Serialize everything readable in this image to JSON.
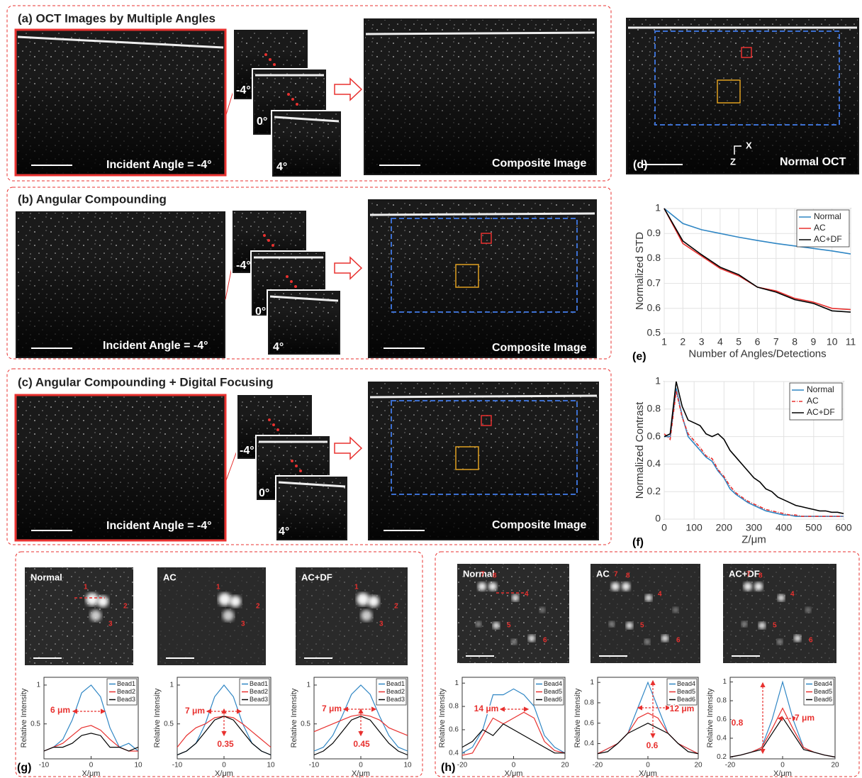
{
  "panels": {
    "a": {
      "title": "(a) OCT Images by Multiple Angles",
      "angle_label": "Incident Angle = -4°",
      "stack_labels": [
        "-4°",
        "0°",
        "4°"
      ],
      "composite_label": "Composite Image"
    },
    "b": {
      "title": "(b) Angular Compounding",
      "angle_label": "Incident Angle = -4°",
      "stack_labels": [
        "-4°",
        "0°",
        "4°"
      ],
      "composite_label": "Composite Image"
    },
    "c": {
      "title": "(c) Angular Compounding + Digital Focusing",
      "angle_label": "Incident Angle = -4°",
      "stack_labels": [
        "-4°",
        "0°",
        "4°"
      ],
      "composite_label": "Composite Image"
    },
    "d": {
      "label": "(d)",
      "axis_x": "X",
      "axis_z": "Z",
      "caption": "Normal OCT"
    },
    "g": {
      "label": "(g)",
      "images": [
        {
          "caption": "Normal",
          "beads": [
            "1",
            "2",
            "3"
          ]
        },
        {
          "caption": "AC",
          "beads": [
            "1",
            "2",
            "3"
          ]
        },
        {
          "caption": "AC+DF",
          "beads": [
            "1",
            "2",
            "3"
          ]
        }
      ]
    },
    "h": {
      "label": "(h)",
      "images": [
        {
          "caption": "Normal",
          "beads": [
            "7",
            "8",
            "4",
            "5",
            "6"
          ]
        },
        {
          "caption": "AC",
          "beads": [
            "7",
            "8",
            "4",
            "5",
            "6"
          ]
        },
        {
          "caption": "AC+DF",
          "beads": [
            "7",
            "8",
            "4",
            "5",
            "6"
          ]
        }
      ]
    }
  },
  "chart_data": [
    {
      "type": "line",
      "panel_label": "(e)",
      "xlabel": "Number of Angles/Detections",
      "ylabel": "Normalized STD",
      "x": [
        1,
        2,
        3,
        4,
        5,
        6,
        7,
        8,
        9,
        10,
        11
      ],
      "xlim": [
        1,
        11
      ],
      "xticks": [
        1,
        2,
        3,
        4,
        5,
        6,
        7,
        8,
        9,
        10,
        11
      ],
      "ylim": [
        0.5,
        1
      ],
      "yticks": [
        0.5,
        0.6,
        0.7,
        0.8,
        0.9,
        1
      ],
      "grid": true,
      "legend": "upper right",
      "series": [
        {
          "name": "Normal",
          "color": "#2f86c4",
          "values": [
            1,
            0.94,
            0.915,
            0.9,
            0.885,
            0.872,
            0.86,
            0.85,
            0.84,
            0.83,
            0.818
          ]
        },
        {
          "name": "AC",
          "color": "#e8312f",
          "values": [
            1,
            0.86,
            0.81,
            0.76,
            0.73,
            0.685,
            0.67,
            0.64,
            0.625,
            0.6,
            0.595
          ]
        },
        {
          "name": "AC+DF",
          "color": "#000000",
          "values": [
            1,
            0.87,
            0.815,
            0.765,
            0.735,
            0.685,
            0.665,
            0.635,
            0.62,
            0.59,
            0.585
          ]
        }
      ]
    },
    {
      "type": "line",
      "panel_label": "(f)",
      "xlabel": "Z/μm",
      "ylabel": "Normalized Contrast",
      "x": [
        0,
        20,
        40,
        60,
        80,
        100,
        120,
        140,
        160,
        180,
        200,
        220,
        240,
        260,
        280,
        300,
        320,
        340,
        360,
        380,
        400,
        420,
        440,
        460,
        480,
        500,
        520,
        540,
        560,
        580,
        600
      ],
      "xlim": [
        0,
        600
      ],
      "xticks": [
        0,
        100,
        200,
        300,
        400,
        500,
        600
      ],
      "ylim": [
        0,
        1
      ],
      "yticks": [
        0,
        0.2,
        0.4,
        0.6,
        0.8,
        1
      ],
      "grid": true,
      "legend": "upper right",
      "series": [
        {
          "name": "Normal",
          "color": "#2f86c4",
          "dash": false,
          "values": [
            0.6,
            0.6,
            0.95,
            0.75,
            0.6,
            0.55,
            0.5,
            0.45,
            0.42,
            0.35,
            0.3,
            0.22,
            0.18,
            0.15,
            0.12,
            0.1,
            0.08,
            0.06,
            0.05,
            0.04,
            0.03,
            0.03,
            0.02,
            0.02,
            0.02,
            0.02,
            0.02,
            0.02,
            0.02,
            0.02,
            0.02
          ]
        },
        {
          "name": "AC",
          "color": "#e8312f",
          "dash": true,
          "values": [
            0.62,
            0.58,
            0.93,
            0.74,
            0.62,
            0.57,
            0.52,
            0.46,
            0.44,
            0.36,
            0.31,
            0.24,
            0.19,
            0.16,
            0.13,
            0.11,
            0.09,
            0.07,
            0.06,
            0.05,
            0.04,
            0.03,
            0.03,
            0.02,
            0.02,
            0.02,
            0.02,
            0.02,
            0.02,
            0.02,
            0.02
          ]
        },
        {
          "name": "AC+DF",
          "color": "#000000",
          "dash": false,
          "values": [
            0.6,
            0.62,
            1,
            0.82,
            0.72,
            0.7,
            0.68,
            0.62,
            0.6,
            0.62,
            0.58,
            0.5,
            0.45,
            0.4,
            0.35,
            0.3,
            0.27,
            0.22,
            0.2,
            0.16,
            0.14,
            0.12,
            0.1,
            0.09,
            0.08,
            0.07,
            0.06,
            0.06,
            0.05,
            0.05,
            0.04
          ]
        }
      ]
    },
    {
      "type": "line",
      "xlabel": "X/μm",
      "ylabel": "Relative Intensity",
      "x": [
        -10,
        -8,
        -6,
        -4,
        -2,
        0,
        2,
        4,
        6,
        8,
        10
      ],
      "xlim": [
        -10,
        10
      ],
      "xticks": [
        -10,
        0,
        10
      ],
      "ylim": [
        0.05,
        1.1
      ],
      "yticks": [
        0.5,
        1
      ],
      "grid": false,
      "legend": "upper right",
      "series": [
        {
          "name": "Bead1",
          "color": "#2f86c4",
          "values": [
            0.15,
            0.2,
            0.3,
            0.55,
            0.9,
            1,
            0.85,
            0.45,
            0.2,
            0.25,
            0.15
          ]
        },
        {
          "name": "Bead2",
          "color": "#e8312f",
          "values": [
            0.15,
            0.2,
            0.25,
            0.35,
            0.45,
            0.48,
            0.42,
            0.3,
            0.2,
            0.15,
            0.15
          ]
        },
        {
          "name": "Bead3",
          "color": "#000000",
          "values": [
            0.15,
            0.2,
            0.2,
            0.25,
            0.35,
            0.38,
            0.35,
            0.2,
            0.2,
            0.15,
            0.2
          ]
        }
      ],
      "annotations": [
        "6 μm"
      ]
    },
    {
      "type": "line",
      "xlabel": "X/μm",
      "ylabel": "Relative Intensity",
      "x": [
        -10,
        -8,
        -6,
        -4,
        -2,
        0,
        2,
        4,
        6,
        8,
        10
      ],
      "xlim": [
        -10,
        10
      ],
      "xticks": [
        -10,
        0,
        10
      ],
      "ylim": [
        0.05,
        1.1
      ],
      "yticks": [
        0.5,
        1
      ],
      "grid": false,
      "legend": "upper right",
      "series": [
        {
          "name": "Bead1",
          "color": "#2f86c4",
          "values": [
            0.1,
            0.15,
            0.25,
            0.5,
            0.85,
            1,
            0.85,
            0.5,
            0.25,
            0.15,
            0.1
          ]
        },
        {
          "name": "Bead2",
          "color": "#e8312f",
          "values": [
            0.2,
            0.35,
            0.45,
            0.5,
            0.58,
            0.6,
            0.58,
            0.5,
            0.4,
            0.3,
            0.2
          ]
        },
        {
          "name": "Bead3",
          "color": "#000000",
          "values": [
            0.1,
            0.15,
            0.25,
            0.4,
            0.55,
            0.6,
            0.55,
            0.4,
            0.25,
            0.15,
            0.1
          ]
        }
      ],
      "annotations": [
        "7 μm",
        "0.35"
      ]
    },
    {
      "type": "line",
      "xlabel": "X/μm",
      "ylabel": "Relative Intensity",
      "x": [
        -10,
        -8,
        -6,
        -4,
        -2,
        0,
        2,
        4,
        6,
        8,
        10
      ],
      "xlim": [
        -10,
        10
      ],
      "xticks": [
        -10,
        0,
        10
      ],
      "ylim": [
        0.05,
        1.1
      ],
      "yticks": [
        0.5,
        1
      ],
      "grid": false,
      "legend": "upper right",
      "series": [
        {
          "name": "Bead1",
          "color": "#2f86c4",
          "values": [
            0.15,
            0.2,
            0.35,
            0.6,
            0.88,
            1,
            0.88,
            0.6,
            0.35,
            0.2,
            0.15
          ]
        },
        {
          "name": "Bead2",
          "color": "#e8312f",
          "values": [
            0.4,
            0.45,
            0.5,
            0.55,
            0.6,
            0.62,
            0.6,
            0.55,
            0.45,
            0.4,
            0.35
          ]
        },
        {
          "name": "Bead3",
          "color": "#000000",
          "values": [
            0.1,
            0.15,
            0.25,
            0.4,
            0.55,
            0.6,
            0.55,
            0.4,
            0.25,
            0.15,
            0.1
          ]
        }
      ],
      "annotations": [
        "7 μm",
        "0.45"
      ]
    },
    {
      "type": "line",
      "xlabel": "X/μm",
      "ylabel": "Relative Intensity",
      "x": [
        -20,
        -16,
        -12,
        -8,
        -4,
        0,
        4,
        8,
        12,
        16,
        20
      ],
      "xlim": [
        -20,
        20
      ],
      "xticks": [
        -20,
        0,
        20
      ],
      "ylim": [
        0.35,
        1.05
      ],
      "yticks": [
        0.4,
        0.6,
        0.8,
        1
      ],
      "grid": false,
      "legend": "upper right",
      "series": [
        {
          "name": "Bead4",
          "color": "#2f86c4",
          "values": [
            0.4,
            0.45,
            0.6,
            0.9,
            0.9,
            0.95,
            0.9,
            0.8,
            0.55,
            0.45,
            0.4
          ]
        },
        {
          "name": "Bead5",
          "color": "#e8312f",
          "values": [
            0.38,
            0.4,
            0.55,
            0.7,
            0.65,
            0.7,
            0.75,
            0.7,
            0.5,
            0.42,
            0.4
          ]
        },
        {
          "name": "Bead6",
          "color": "#000000",
          "values": [
            0.45,
            0.5,
            0.6,
            0.55,
            0.65,
            0.6,
            0.55,
            0.5,
            0.45,
            0.4,
            0.4
          ]
        }
      ],
      "annotations": [
        "14 μm"
      ]
    },
    {
      "type": "line",
      "xlabel": "X/μm",
      "ylabel": "Relative Intensity",
      "x": [
        -20,
        -16,
        -12,
        -8,
        -4,
        0,
        4,
        8,
        12,
        16,
        20
      ],
      "xlim": [
        -20,
        20
      ],
      "xticks": [
        -20,
        0,
        20
      ],
      "ylim": [
        0.25,
        1.05
      ],
      "yticks": [
        0.4,
        0.6,
        0.8,
        1
      ],
      "grid": false,
      "legend": "upper right",
      "series": [
        {
          "name": "Bead4",
          "color": "#2f86c4",
          "values": [
            0.3,
            0.35,
            0.4,
            0.5,
            0.75,
            1,
            0.75,
            0.5,
            0.4,
            0.35,
            0.3
          ]
        },
        {
          "name": "Bead5",
          "color": "#e8312f",
          "values": [
            0.3,
            0.35,
            0.4,
            0.5,
            0.65,
            0.7,
            0.65,
            0.5,
            0.4,
            0.35,
            0.3
          ]
        },
        {
          "name": "Bead6",
          "color": "#000000",
          "values": [
            0.3,
            0.32,
            0.4,
            0.5,
            0.55,
            0.6,
            0.55,
            0.5,
            0.4,
            0.32,
            0.3
          ]
        }
      ],
      "annotations": [
        "12 μm",
        "0.6"
      ]
    },
    {
      "type": "line",
      "xlabel": "X/μm",
      "ylabel": "Relative Intensity",
      "x": [
        -20,
        -16,
        -12,
        -8,
        -4,
        0,
        4,
        8,
        12,
        16,
        20
      ],
      "xlim": [
        -20,
        20
      ],
      "xticks": [
        -20,
        0,
        20
      ],
      "ylim": [
        0.18,
        1.05
      ],
      "yticks": [
        0.2,
        0.4,
        0.6,
        0.8,
        1
      ],
      "grid": false,
      "legend": "upper right",
      "series": [
        {
          "name": "Bead4",
          "color": "#2f86c4",
          "values": [
            0.2,
            0.22,
            0.25,
            0.3,
            0.6,
            1,
            0.6,
            0.3,
            0.25,
            0.22,
            0.2
          ]
        },
        {
          "name": "Bead5",
          "color": "#e8312f",
          "values": [
            0.2,
            0.22,
            0.25,
            0.3,
            0.5,
            0.72,
            0.5,
            0.3,
            0.25,
            0.22,
            0.2
          ]
        },
        {
          "name": "Bead6",
          "color": "#000000",
          "values": [
            0.2,
            0.22,
            0.25,
            0.28,
            0.45,
            0.62,
            0.45,
            0.28,
            0.25,
            0.22,
            0.2
          ]
        }
      ],
      "annotations": [
        "0.8",
        "7 μm"
      ]
    }
  ]
}
